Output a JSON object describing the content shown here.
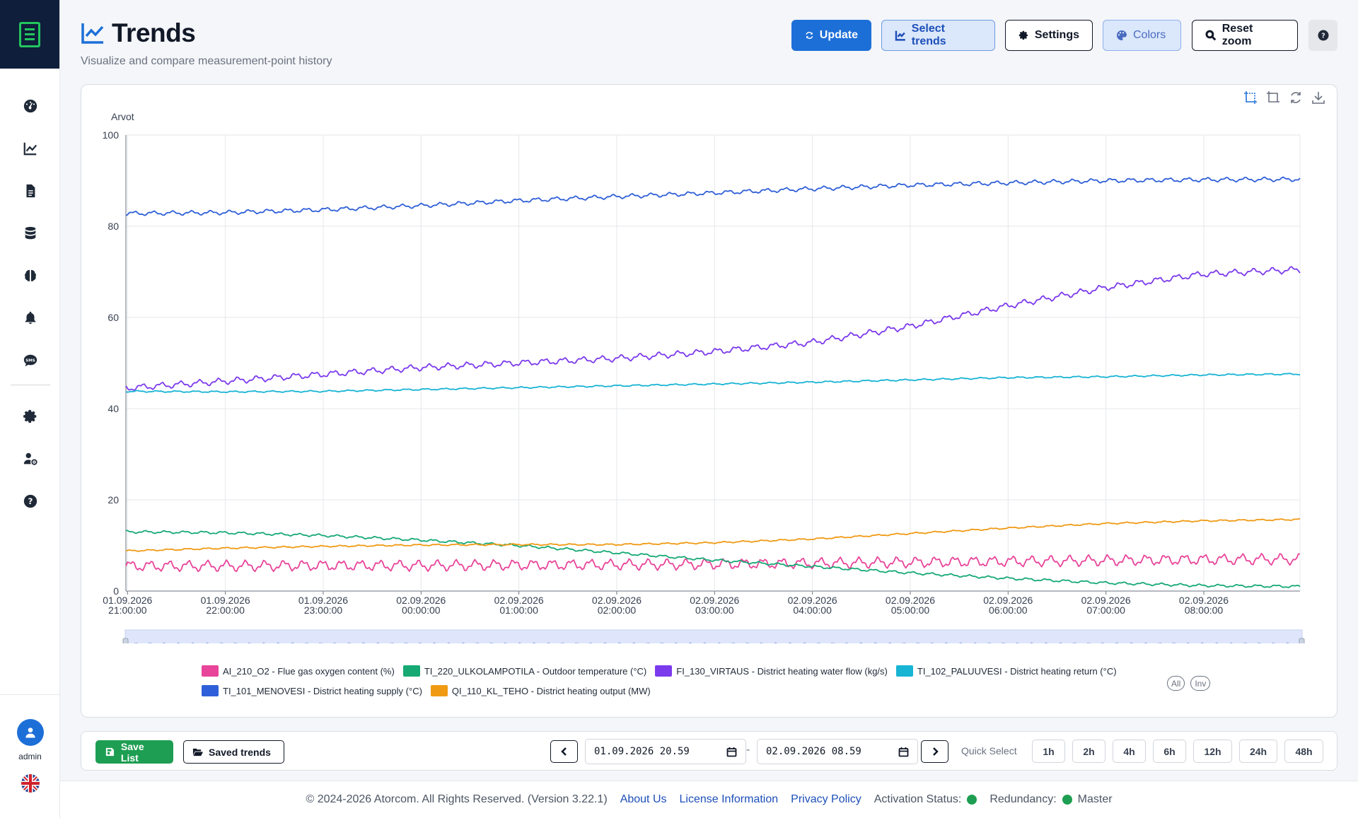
{
  "page": {
    "title": "Trends",
    "subtitle": "Visualize and compare measurement-point history"
  },
  "sidebar": {
    "items": [
      {
        "name": "dashboard",
        "icon": "gauge-icon"
      },
      {
        "name": "trends",
        "icon": "chart-line-icon"
      },
      {
        "name": "reports",
        "icon": "document-icon"
      },
      {
        "name": "database",
        "icon": "database-icon"
      },
      {
        "name": "ai",
        "icon": "brain-icon"
      },
      {
        "name": "alarms",
        "icon": "bell-icon"
      },
      {
        "name": "sms",
        "icon": "sms-icon"
      },
      {
        "name": "settings",
        "icon": "gear-icon"
      },
      {
        "name": "users",
        "icon": "user-gear-icon"
      },
      {
        "name": "help",
        "icon": "question-circle-icon"
      }
    ],
    "user": {
      "name": "admin"
    },
    "language": "en-GB"
  },
  "toolbar": {
    "update": "Update",
    "select_trends": "Select trends",
    "settings": "Settings",
    "colors": "Colors",
    "reset_zoom": "Reset zoom"
  },
  "chart_data": {
    "type": "line",
    "ylabel": "Arvot",
    "ylim": [
      0,
      100
    ],
    "yticks": [
      0,
      20,
      40,
      60,
      80,
      100
    ],
    "x_ticks": [
      [
        "01.09.2026",
        "21:00:00"
      ],
      [
        "01.09.2026",
        "22:00:00"
      ],
      [
        "01.09.2026",
        "23:00:00"
      ],
      [
        "02.09.2026",
        "00:00:00"
      ],
      [
        "02.09.2026",
        "01:00:00"
      ],
      [
        "02.09.2026",
        "02:00:00"
      ],
      [
        "02.09.2026",
        "03:00:00"
      ],
      [
        "02.09.2026",
        "04:00:00"
      ],
      [
        "02.09.2026",
        "05:00:00"
      ],
      [
        "02.09.2026",
        "06:00:00"
      ],
      [
        "02.09.2026",
        "07:00:00"
      ],
      [
        "02.09.2026",
        "08:00:00"
      ]
    ],
    "x_start": "01.09.2026 20:59",
    "x_end": "02.09.2026 08:59",
    "x_hours": [
      0,
      1,
      2,
      3,
      4,
      5,
      6,
      7,
      8,
      9,
      10,
      11,
      12
    ],
    "grid": true,
    "legend_position": "bottom",
    "series": [
      {
        "name": "AI_210_O2 - Flue gas oxygen content (%)",
        "color": "#e8449a",
        "values": [
          5.5,
          5.5,
          5.6,
          5.6,
          5.7,
          5.8,
          5.9,
          6.1,
          6.3,
          6.5,
          6.7,
          6.9,
          7.0
        ],
        "ripple": 1.0
      },
      {
        "name": "TI_220_ULKOLAMPOTILA - Outdoor temperature (°C)",
        "color": "#16a974",
        "values": [
          13.0,
          12.8,
          12.2,
          11.2,
          10.0,
          8.4,
          6.8,
          5.4,
          4.0,
          2.8,
          1.8,
          1.2,
          1.0
        ],
        "ripple": 0.25
      },
      {
        "name": "FI_130_VIRTAUS - District heating water flow (kg/s)",
        "color": "#7c3aed",
        "values": [
          44.5,
          46.0,
          47.5,
          49.0,
          50.0,
          51.0,
          52.5,
          54.5,
          58.0,
          62.5,
          66.5,
          69.5,
          70.5
        ],
        "ripple": 0.6
      },
      {
        "name": "TI_102_PALUUVESI - District heating return (°C)",
        "color": "#17b4d4",
        "values": [
          43.8,
          43.7,
          43.8,
          44.2,
          44.6,
          45.0,
          45.4,
          45.8,
          46.3,
          46.8,
          47.0,
          47.4,
          47.6
        ],
        "ripple": 0.15
      },
      {
        "name": "TI_101_MENOVESI - District heating supply (°C)",
        "color": "#2f5fd8",
        "values": [
          82.8,
          83.0,
          83.6,
          84.5,
          85.6,
          86.5,
          87.3,
          88.2,
          89.0,
          89.5,
          90.0,
          90.2,
          90.3
        ],
        "ripple": 0.4
      },
      {
        "name": "QI_110_KL_TEHO - District heating output (MW)",
        "color": "#f09a14",
        "values": [
          8.8,
          9.4,
          9.8,
          10.1,
          10.2,
          10.2,
          10.6,
          11.4,
          12.6,
          13.8,
          14.8,
          15.4,
          15.7
        ],
        "ripple": 0.15
      }
    ]
  },
  "legend_controls": {
    "all": "All",
    "inv": "Inv"
  },
  "bottom_bar": {
    "save_list": "Save List",
    "saved_trends": "Saved trends",
    "start_date": "01.09.2026 20.59",
    "end_date": "02.09.2026 08.59",
    "date_separator": "-",
    "quick_select_label": "Quick Select",
    "quick_select": [
      "1h",
      "2h",
      "4h",
      "6h",
      "12h",
      "24h",
      "48h"
    ]
  },
  "footer": {
    "copyright": "© 2024-2026 Atorcom. All Rights Reserved. (Version 3.22.1)",
    "about": "About Us",
    "license": "License Information",
    "privacy": "Privacy Policy",
    "activation_label": "Activation Status:",
    "activation_color": "#1e9e52",
    "redundancy_label": "Redundancy:",
    "redundancy_color": "#1e9e52",
    "redundancy_value": "Master"
  }
}
